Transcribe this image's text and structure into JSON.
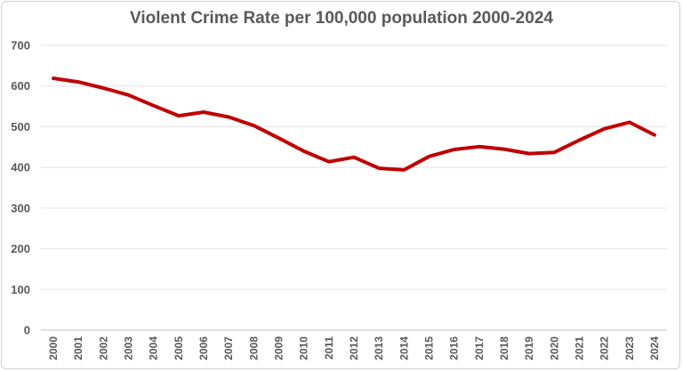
{
  "chart_data": {
    "type": "line",
    "title": "Violent Crime Rate per 100,000 population 2000-2024",
    "xlabel": "",
    "ylabel": "",
    "ylim": [
      0,
      700
    ],
    "yticks": [
      0,
      100,
      200,
      300,
      400,
      500,
      600,
      700
    ],
    "grid": true,
    "legend": "none",
    "categories": [
      "2000",
      "2001",
      "2002",
      "2003",
      "2004",
      "2005",
      "2006",
      "2007",
      "2008",
      "2009",
      "2010",
      "2011",
      "2012",
      "2013",
      "2014",
      "2015",
      "2016",
      "2017",
      "2018",
      "2019",
      "2020",
      "2021",
      "2022",
      "2023",
      "2024"
    ],
    "series": [
      {
        "color": "#c00000",
        "values": [
          619,
          610,
          595,
          578,
          552,
          527,
          536,
          524,
          503,
          472,
          440,
          414,
          425,
          398,
          394,
          427,
          444,
          451,
          445,
          434,
          437,
          467,
          495,
          511,
          480
        ]
      }
    ]
  }
}
